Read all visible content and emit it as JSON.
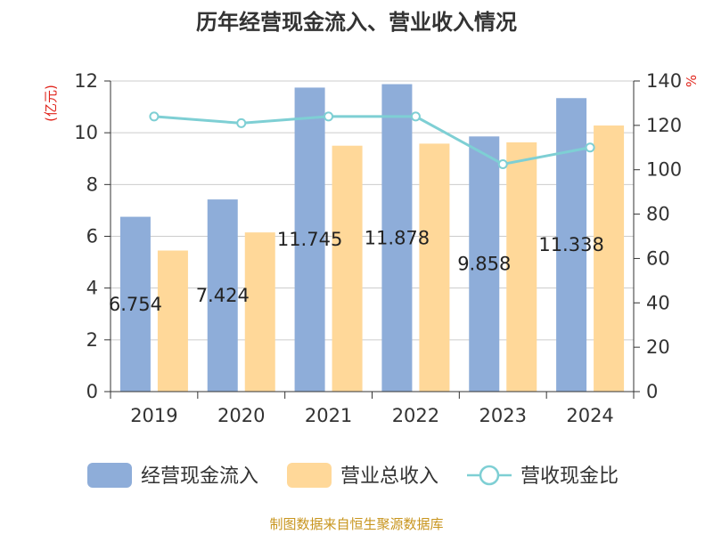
{
  "chart_data": {
    "type": "bar",
    "title": "历年经营现金流入、营业收入情况",
    "categories": [
      "2019",
      "2020",
      "2021",
      "2022",
      "2023",
      "2024"
    ],
    "left_axis": {
      "unit": "(亿元)",
      "ylim": [
        0,
        12
      ],
      "ticks": [
        0,
        2,
        4,
        6,
        8,
        10,
        12
      ]
    },
    "right_axis": {
      "unit": "%",
      "ylim": [
        0,
        140
      ],
      "ticks": [
        0,
        20,
        40,
        60,
        80,
        100,
        120,
        140
      ]
    },
    "series": [
      {
        "name": "经营现金流入",
        "type": "bar",
        "axis": "left",
        "color": "#8eadd9",
        "values": [
          6.754,
          7.424,
          11.745,
          11.878,
          9.858,
          11.338
        ],
        "labels": [
          "6.754",
          "7.424",
          "11.745",
          "11.878",
          "9.858",
          "11.338"
        ]
      },
      {
        "name": "营业总收入",
        "type": "bar",
        "axis": "left",
        "color": "#ffd899",
        "values": [
          5.45,
          6.15,
          9.5,
          9.58,
          9.63,
          10.28
        ]
      },
      {
        "name": "营收现金比",
        "type": "line",
        "axis": "right",
        "color": "#7ecfd4",
        "values": [
          124,
          121,
          124,
          124,
          102.5,
          110
        ]
      }
    ],
    "grid": true,
    "legend_position": "bottom"
  },
  "source": "制图数据来自恒生聚源数据库"
}
